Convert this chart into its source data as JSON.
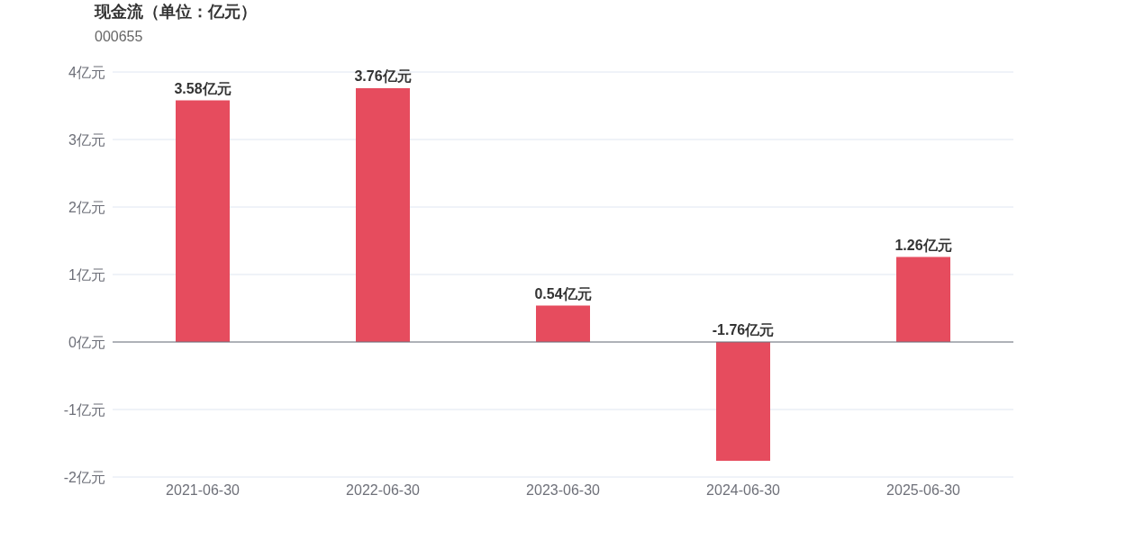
{
  "chart_data": {
    "type": "bar",
    "title": "现金流（单位：亿元）",
    "subtitle": "000655",
    "categories": [
      "2021-06-30",
      "2022-06-30",
      "2023-06-30",
      "2024-06-30",
      "2025-06-30"
    ],
    "values": [
      3.58,
      3.76,
      0.54,
      -1.76,
      1.26
    ],
    "value_labels": [
      "3.58亿元",
      "3.76亿元",
      "0.54亿元",
      "-1.76亿元",
      "1.26亿元"
    ],
    "color": "#e64c5e",
    "ylim": [
      -2,
      4
    ],
    "yticks": [
      {
        "value": -2,
        "label": "-2亿元"
      },
      {
        "value": -1,
        "label": "-1亿元"
      },
      {
        "value": 0,
        "label": "0亿元"
      },
      {
        "value": 1,
        "label": "1亿元"
      },
      {
        "value": 2,
        "label": "2亿元"
      },
      {
        "value": 3,
        "label": "3亿元"
      },
      {
        "value": 4,
        "label": "4亿元"
      }
    ],
    "grid": "y"
  }
}
